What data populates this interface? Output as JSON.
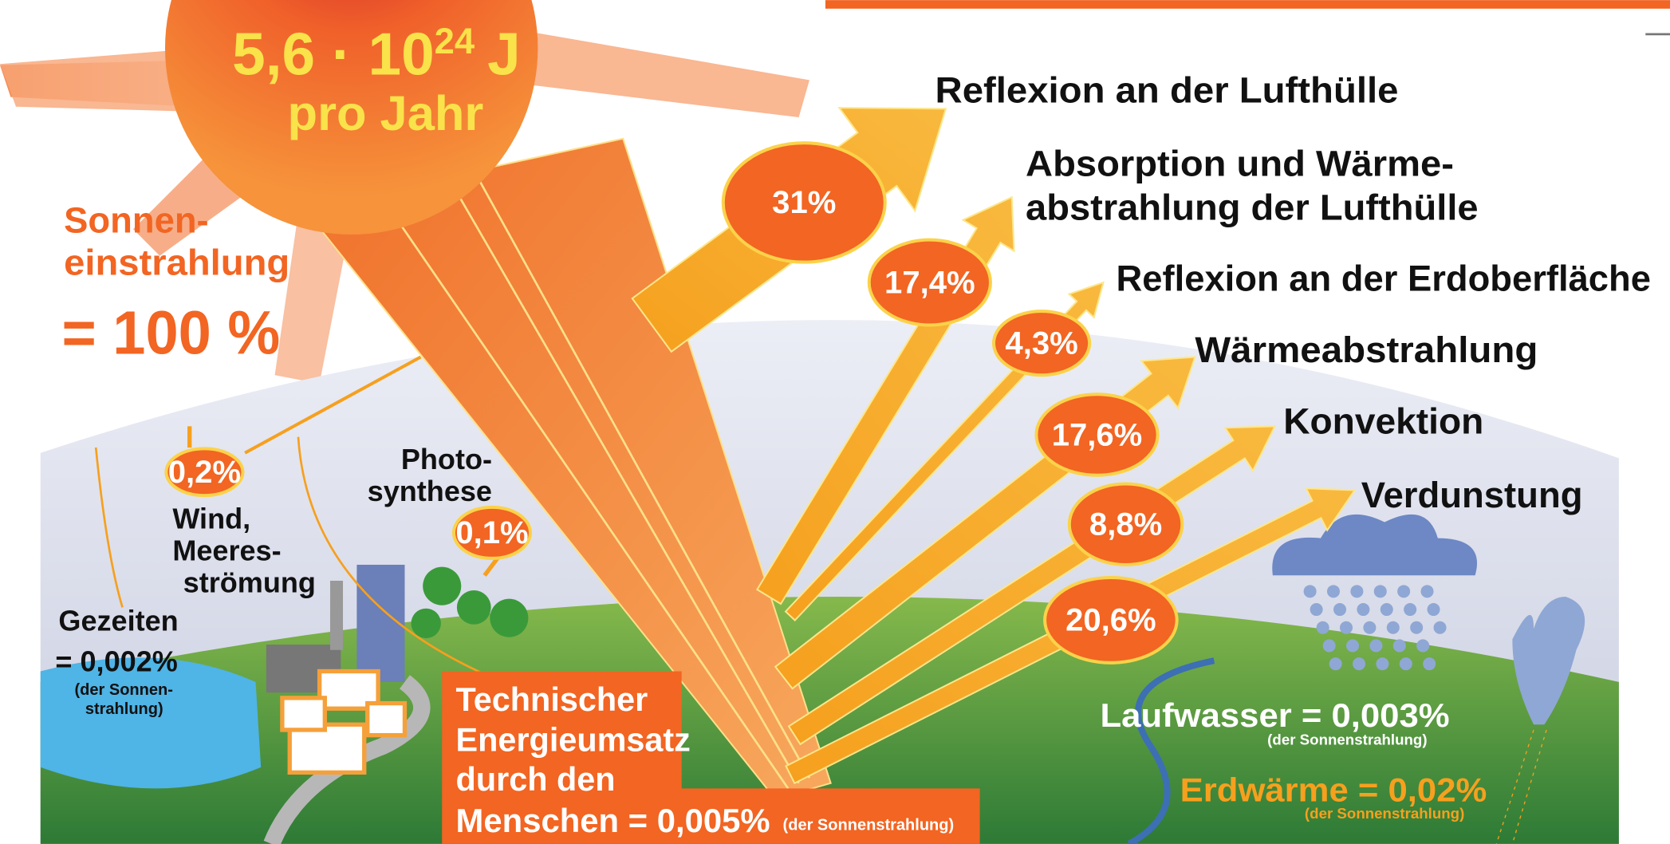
{
  "sun": {
    "energy": "5,6 · 10",
    "exponent": "24",
    "unit": "J",
    "period": "pro Jahr"
  },
  "insolation": {
    "lines": [
      "Sonnen-",
      "einstrahlung"
    ],
    "value": "= 100 %"
  },
  "flows": [
    {
      "lines": [
        "Reflexion an der Lufthülle"
      ],
      "share": "31%"
    },
    {
      "lines": [
        "Absorption und Wärme-",
        "abstrahlung der Lufthülle"
      ],
      "share": "17,4%"
    },
    {
      "lines": [
        "Reflexion an der Erdoberfläche"
      ],
      "share": "4,3%"
    },
    {
      "lines": [
        "Wärmeabstrahlung"
      ],
      "share": "17,6%"
    },
    {
      "lines": [
        "Konvektion"
      ],
      "share": "8,8%"
    },
    {
      "lines": [
        "Verdunstung"
      ],
      "share": "20,6%"
    }
  ],
  "wind": {
    "share": "0,2%",
    "lines": [
      "Wind,",
      "Meeres-",
      "strömung"
    ]
  },
  "photosynthesis": {
    "share": "0,1%",
    "lines": [
      "Photo-",
      "synthese"
    ]
  },
  "tides": {
    "lines": [
      "Gezeiten",
      "= 0,002%"
    ],
    "note": [
      "(der Sonnen-",
      "strahlung)"
    ]
  },
  "technical": {
    "lines": [
      "Technischer",
      "Energieumsatz",
      "durch den",
      "Menschen = 0,005%"
    ],
    "note": "(der Sonnenstrahlung)"
  },
  "running_water": {
    "label": "Laufwasser = 0,003%",
    "note": "(der Sonnenstrahlung)"
  },
  "geothermal": {
    "label": "Erdwärme = 0,02%",
    "note": "(der Sonnenstrahlung)"
  }
}
